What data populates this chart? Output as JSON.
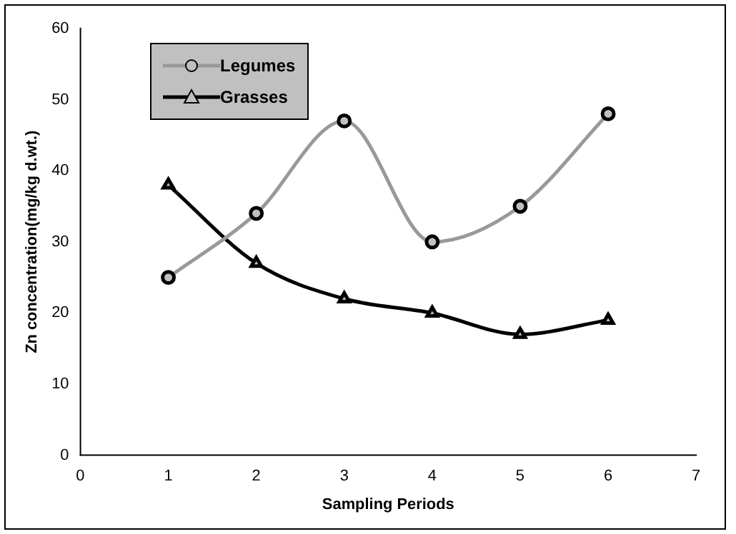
{
  "chart_data": {
    "type": "line",
    "xlabel": "Sampling Periods",
    "ylabel": "Zn concentration(mg/kg d.wt.)",
    "x": [
      1,
      2,
      3,
      4,
      5,
      6
    ],
    "series": [
      {
        "name": "Legumes",
        "color": "#999999",
        "marker": "circle",
        "values": [
          25,
          34,
          47,
          30,
          35,
          48
        ]
      },
      {
        "name": "Grasses",
        "color": "#000000",
        "marker": "triangle",
        "values": [
          38,
          27,
          22,
          20,
          17,
          19
        ]
      }
    ],
    "xlim": [
      0,
      7
    ],
    "xticks": [
      0,
      1,
      2,
      3,
      4,
      5,
      6,
      7
    ],
    "ylim": [
      0,
      60
    ],
    "yticks": [
      0,
      10,
      20,
      30,
      40,
      50,
      60
    ],
    "grid": false,
    "legend": "top left"
  }
}
